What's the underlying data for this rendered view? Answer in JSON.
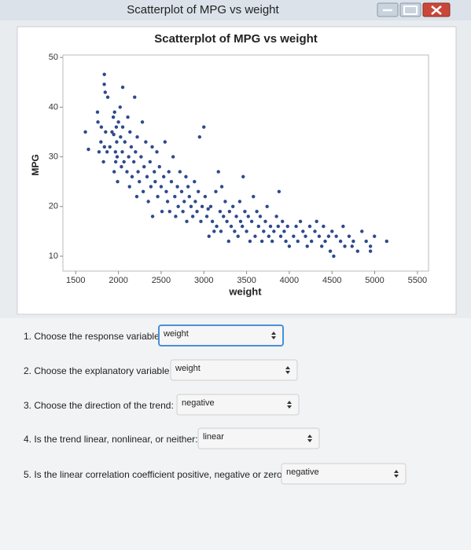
{
  "window": {
    "title": "Scatterplot of MPG vs weight"
  },
  "chart_data": {
    "type": "scatter",
    "title": "Scatterplot of MPG vs weight",
    "x_label": "weight",
    "y_label": "MPG",
    "x": [
      1613,
      1649,
      1755,
      1760,
      1773,
      1795,
      1800,
      1825,
      1834,
      1835,
      1836,
      1845,
      1850,
      1867,
      1875,
      1900,
      1925,
      1940,
      1945,
      1950,
      1955,
      1965,
      1968,
      1975,
      1980,
      1985,
      1990,
      2000,
      2020,
      2025,
      2035,
      2045,
      2050,
      2050,
      2065,
      2075,
      2100,
      2110,
      2120,
      2130,
      2135,
      2150,
      2160,
      2180,
      2190,
      2200,
      2215,
      2220,
      2230,
      2245,
      2265,
      2280,
      2290,
      2300,
      2320,
      2335,
      2350,
      2370,
      2380,
      2395,
      2400,
      2420,
      2430,
      2450,
      2460,
      2480,
      2500,
      2510,
      2530,
      2545,
      2560,
      2575,
      2590,
      2600,
      2620,
      2640,
      2660,
      2670,
      2690,
      2700,
      2720,
      2740,
      2755,
      2770,
      2790,
      2800,
      2815,
      2830,
      2850,
      2870,
      2890,
      2900,
      2920,
      2935,
      2950,
      2965,
      2980,
      3000,
      3015,
      3035,
      3050,
      3060,
      3080,
      3100,
      3120,
      3140,
      3150,
      3170,
      3190,
      3200,
      3210,
      3230,
      3250,
      3270,
      3290,
      3300,
      3320,
      3340,
      3360,
      3380,
      3400,
      3420,
      3430,
      3450,
      3460,
      3480,
      3500,
      3520,
      3540,
      3560,
      3580,
      3600,
      3620,
      3640,
      3660,
      3680,
      3700,
      3720,
      3740,
      3760,
      3780,
      3800,
      3820,
      3850,
      3870,
      3880,
      3900,
      3920,
      3940,
      3960,
      3980,
      4000,
      4050,
      4080,
      4100,
      4130,
      4160,
      4190,
      4210,
      4240,
      4260,
      4300,
      4320,
      4350,
      4380,
      4400,
      4420,
      4460,
      4480,
      4500,
      4520,
      4550,
      4600,
      4630,
      4650,
      4700,
      4735,
      4750,
      4800,
      4850,
      4900,
      4950,
      4950,
      4997,
      5140
    ],
    "y": [
      35,
      31.5,
      39,
      37,
      31,
      33,
      36,
      29,
      44.6,
      46.6,
      32,
      43,
      35,
      31,
      42,
      32,
      35,
      38,
      34.5,
      27,
      39,
      31,
      29,
      36,
      33,
      30,
      25,
      37,
      40,
      34,
      28,
      31,
      44,
      36,
      29,
      33,
      27,
      38,
      30,
      24,
      35,
      32,
      26,
      29,
      42,
      31,
      22,
      34,
      27,
      25,
      30,
      37,
      23,
      28,
      33,
      26,
      21,
      29,
      24,
      32,
      18,
      27,
      25,
      31,
      22,
      28,
      24,
      19,
      26,
      33,
      23,
      21,
      27,
      19,
      25,
      30,
      22,
      18,
      24,
      20,
      27,
      23,
      19,
      21,
      26,
      17,
      24,
      22,
      20,
      18,
      25,
      21,
      19,
      23,
      34,
      17,
      20,
      36,
      22,
      18,
      19.5,
      14,
      20,
      17,
      15,
      23,
      16,
      27,
      19,
      15,
      24,
      18,
      21,
      17,
      13,
      19,
      16,
      20,
      15,
      18,
      14,
      21,
      17,
      16,
      26,
      19,
      15,
      18,
      13,
      17,
      22,
      14,
      19,
      16,
      18,
      13,
      15,
      17,
      20,
      14,
      16,
      13,
      15,
      18,
      16,
      23,
      14,
      17,
      15,
      13,
      16,
      12,
      14,
      16,
      13,
      17,
      15,
      14,
      12,
      16,
      13,
      15,
      17,
      14,
      12,
      16,
      13,
      14,
      11,
      15,
      10,
      14,
      13,
      16,
      12,
      14,
      12,
      13,
      11,
      15,
      13,
      12,
      11,
      14,
      13
    ],
    "color": "#2d4a8c",
    "xlim": [
      1350,
      5630
    ],
    "ylim": [
      7,
      50.5
    ],
    "xticks": [
      1500,
      2000,
      2500,
      3000,
      3500,
      4000,
      4500,
      5000,
      5500
    ],
    "yticks": [
      10,
      20,
      30,
      40,
      50
    ]
  },
  "questions": [
    {
      "label": "1. Choose the response variable:",
      "selected": "weight"
    },
    {
      "label": "2. Choose the explanatory variable:",
      "selected": "weight"
    },
    {
      "label": "3. Choose the direction of the trend:",
      "selected": "negative"
    },
    {
      "label": "4. Is the trend linear, nonlinear, or neither:",
      "selected": "linear"
    },
    {
      "label": "5. Is the linear correlation coefficient positive, negative or zero:",
      "selected": "negative"
    }
  ]
}
